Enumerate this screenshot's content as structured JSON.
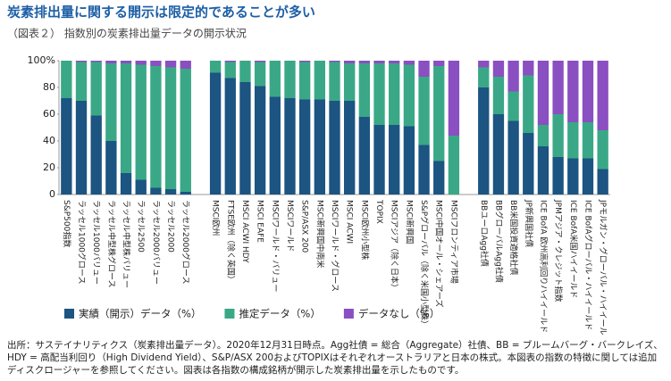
{
  "chart_data": {
    "type": "stacked_bar",
    "title": "炭素排出量に関する開示は限定的であることが多い",
    "subtitle": "（図表２） 指数別の炭素排出量データの開示状況",
    "categories": [
      "S&P500指数",
      "ラッセル1000グロース",
      "ラッセル1000バリュー",
      "ラッセル中型株グロース",
      "ラッセル中型株バリュー",
      "ラッセル2500",
      "ラッセル2000バリュー",
      "ラッセル2000",
      "ラッセル2000グロース",
      null,
      "MSCI欧州",
      "FTSE欧州（除く英国）",
      "MSCI ACWI HDY",
      "MSCI EAFE",
      "MSCIワールド・バリュー",
      "MSCIワールド",
      "S&P/ASX 200",
      "MSCI新興国中南米",
      "MSCIワールド・グロース",
      "MSCI ACWI",
      "MSCI欧州小型株",
      "TOPIX",
      "MSCIアジア（除く日本）",
      "MSCI新興国",
      "S&Pグローバル（除く米国小型株）",
      "MSCI中国オール・シェアーズ",
      "MSCIフロンティア市場",
      null,
      "BBユーロAgg社債",
      "BBグローバルAgg社債",
      "BB米国投資適格社債",
      "JP新興国社債",
      "ICE BofA 欧州高利回りハイイールド",
      "JPMアジア・クレジット指数",
      "ICE BofA米国ハイイールド",
      "ICE BofAグローバル・ハイイールド",
      "JPモルガン・グローバル・ハイイールド"
    ],
    "series": [
      {
        "name": "実績（開示）データ（%）",
        "color": "#1c5482",
        "values": [
          72,
          70,
          59,
          40,
          16,
          11,
          5,
          4,
          2,
          null,
          91,
          87,
          84,
          81,
          73,
          72,
          71,
          71,
          70,
          70,
          58,
          52,
          52,
          51,
          37,
          25,
          0,
          null,
          80,
          60,
          55,
          46,
          36,
          28,
          27,
          27,
          19
        ]
      },
      {
        "name": "推定データ（%）",
        "color": "#3aa887",
        "values": [
          28,
          29,
          40,
          58,
          82,
          86,
          91,
          91,
          92,
          null,
          9,
          12,
          16,
          18,
          27,
          28,
          28,
          29,
          29,
          28,
          40,
          46,
          46,
          46,
          51,
          71,
          44,
          null,
          15,
          28,
          22,
          43,
          16,
          32,
          27,
          27,
          29
        ]
      },
      {
        "name": "データなし（%）",
        "color": "#8a4fc1",
        "values": [
          0,
          1,
          1,
          2,
          2,
          3,
          4,
          5,
          6,
          null,
          0,
          1,
          0,
          1,
          0,
          0,
          1,
          0,
          1,
          2,
          2,
          2,
          2,
          3,
          12,
          4,
          56,
          null,
          5,
          12,
          23,
          11,
          48,
          40,
          46,
          46,
          52
        ]
      }
    ],
    "ylim": [
      0,
      100
    ],
    "yticks": [
      0,
      20,
      40,
      60,
      80,
      {
        "value": 100,
        "label": "100%"
      }
    ],
    "source": "出所：サステイナリティクス（炭素排出量データ）。2020年12月31日時点。Agg社債 = 総合（Aggregate）社債、BB = ブルームバーグ・バークレイズ、HDY = 高配当利回り（High Dividend Yield）、S&P/ASX 200およびTOPIXはそれぞれオーストラリアと日本の株式。本図表の指数の特徴に関しては追加ディスクロージャーを参照してください。図表は各指数の構成銘柄が開示した炭素排出量を示したものです。"
  }
}
